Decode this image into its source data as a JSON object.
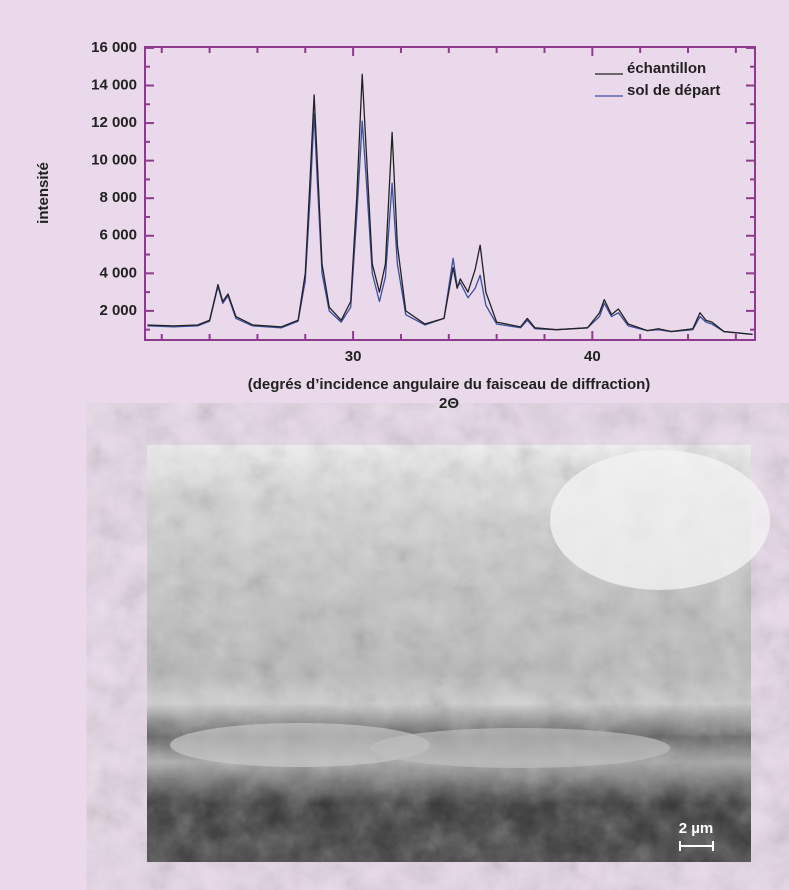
{
  "chart_data": {
    "type": "line",
    "y_label": "intensité",
    "x_label": [
      "(degrés d’incidence angulaire du faisceau de diffraction)",
      "2Θ"
    ],
    "x": [
      21.4,
      22.5,
      23.5,
      24.0,
      24.35,
      24.55,
      24.77,
      25.1,
      25.8,
      27.0,
      27.7,
      28.0,
      28.2,
      28.37,
      28.5,
      28.7,
      29.0,
      29.5,
      29.9,
      30.15,
      30.38,
      30.55,
      30.8,
      31.1,
      31.35,
      31.63,
      31.85,
      32.2,
      33.0,
      33.8,
      34.18,
      34.35,
      34.48,
      34.8,
      35.1,
      35.31,
      35.55,
      36.0,
      37.0,
      37.28,
      37.6,
      38.5,
      39.8,
      40.3,
      40.5,
      40.8,
      41.09,
      41.5,
      42.3,
      42.76,
      43.3,
      44.2,
      44.5,
      44.75,
      45.0,
      45.5,
      46.7
    ],
    "series": [
      {
        "name": "échantillon",
        "color": "#222222",
        "values": [
          1250,
          1200,
          1250,
          1500,
          3400,
          2500,
          2900,
          1700,
          1250,
          1150,
          1500,
          4000,
          9000,
          13500,
          10000,
          4500,
          2200,
          1500,
          2500,
          8000,
          14600,
          10500,
          4500,
          3000,
          4500,
          11500,
          5500,
          2000,
          1300,
          1600,
          4300,
          3200,
          3700,
          3000,
          4200,
          5500,
          3000,
          1400,
          1150,
          1600,
          1100,
          1000,
          1100,
          1900,
          2600,
          1800,
          2100,
          1300,
          950,
          1050,
          900,
          1050,
          1900,
          1500,
          1400,
          900,
          750
        ]
      },
      {
        "name": "sol de départ",
        "color": "#3a4fa0",
        "values": [
          1200,
          1150,
          1200,
          1450,
          3300,
          2400,
          2800,
          1600,
          1200,
          1100,
          1450,
          3600,
          8000,
          12500,
          9000,
          4000,
          2000,
          1400,
          2200,
          7000,
          12100,
          9000,
          4000,
          2500,
          3800,
          8800,
          4500,
          1800,
          1250,
          1600,
          4800,
          3300,
          3500,
          2700,
          3200,
          3900,
          2300,
          1300,
          1100,
          1500,
          1050,
          1000,
          1100,
          1700,
          2400,
          1700,
          1900,
          1200,
          950,
          1000,
          900,
          1000,
          1700,
          1400,
          1300,
          900,
          750
        ]
      }
    ],
    "xlim": [
      21.3,
      46.8
    ],
    "ylim": [
      450,
      16050
    ],
    "xticks": [
      30,
      40
    ],
    "xminorticks": [
      22,
      24,
      26,
      28,
      32,
      34,
      36,
      38,
      42,
      44,
      46
    ],
    "yticks": [
      {
        "value": 2000,
        "label": "2 000"
      },
      {
        "value": 4000,
        "label": "4 000"
      },
      {
        "value": 6000,
        "label": "6 000"
      },
      {
        "value": 8000,
        "label": "8 000"
      },
      {
        "value": 10000,
        "label": "10 000"
      },
      {
        "value": 12000,
        "label": "12 000"
      },
      {
        "value": 14000,
        "label": "14 000"
      },
      {
        "value": 16000,
        "label": "16 000"
      }
    ],
    "yminorticks": [
      1000,
      3000,
      5000,
      7000,
      9000,
      11000,
      13000,
      15000
    ],
    "frame_color": "#8e3a8e",
    "legend": "upper right",
    "grid": false
  },
  "micrograph": {
    "scale_label": "2 µm"
  }
}
